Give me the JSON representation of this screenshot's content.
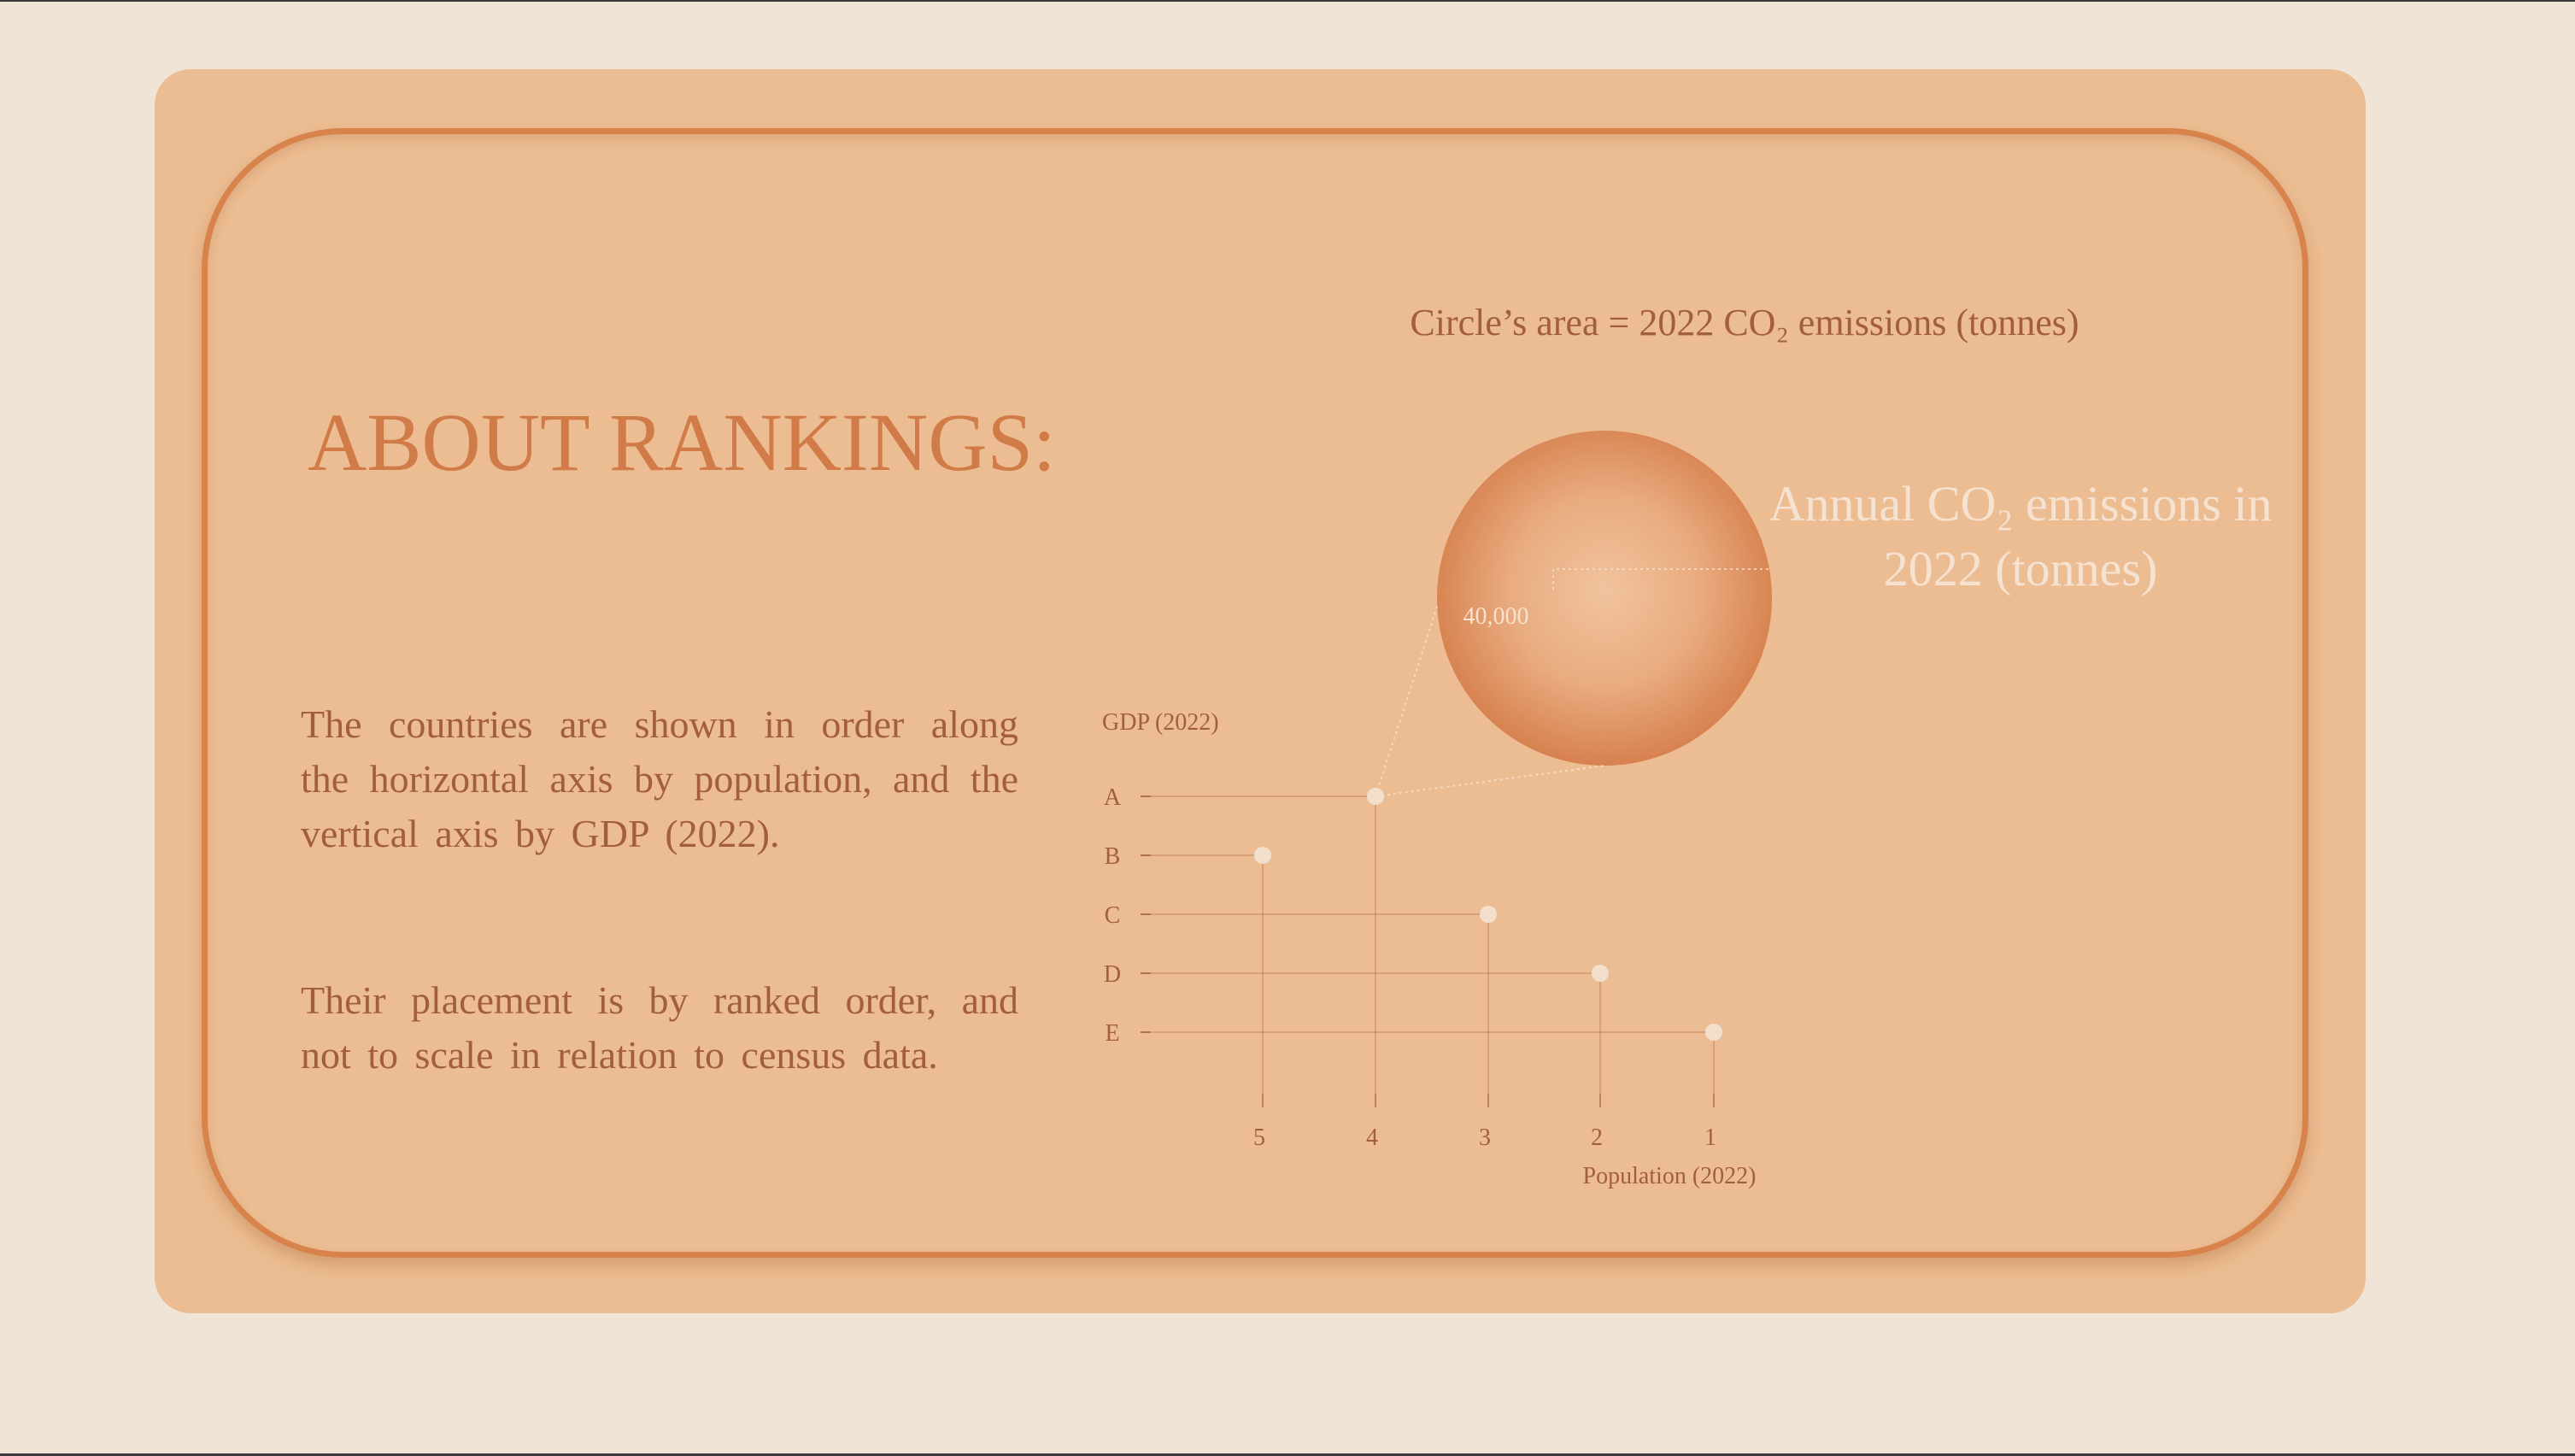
{
  "heading": "ABOUT RANKINGS:",
  "paragraphs": [
    "The countries are shown in order along the horizontal axis by population, and the vertical axis by GDP (2022).",
    "Their placement is by ranked order, and not to scale in relation to census data."
  ],
  "chart_data": {
    "type": "scatter",
    "legend_title": "Circle’s area = 2022 CO₂ emissions (tonnes)",
    "circle_label": "Annual CO₂ emissions in 2022 (tonnes)",
    "circle_value": "40,000",
    "xlabel": "Population (2022)",
    "ylabel": "GDP (2022)",
    "x_ticks": [
      "5",
      "4",
      "3",
      "2",
      "1"
    ],
    "y_ticks": [
      "A",
      "B",
      "C",
      "D",
      "E"
    ],
    "points": [
      {
        "label": "A",
        "x": 4
      },
      {
        "label": "B",
        "x": 5
      },
      {
        "label": "C",
        "x": 3
      },
      {
        "label": "D",
        "x": 2
      },
      {
        "label": "E",
        "x": 1
      }
    ],
    "colors": {
      "text": "#a35f3d",
      "accent": "#d17c48",
      "light_text": "#f6e2d0",
      "point": "#f3e3d4"
    }
  }
}
